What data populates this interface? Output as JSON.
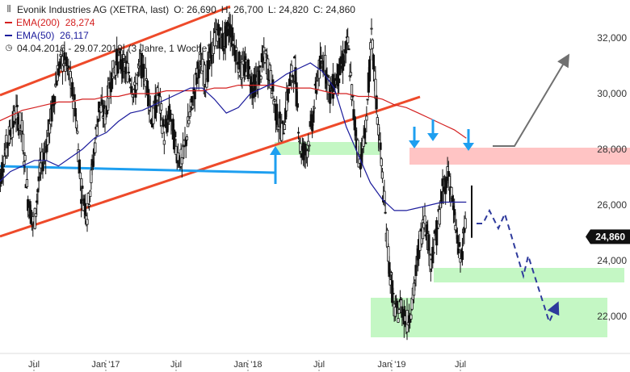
{
  "chart_data": {
    "type": "candlestick",
    "title": "Evonik Industries AG (XETRA, last)",
    "ohlc": {
      "o_label": "O:",
      "open": "26,690",
      "h_label": "H:",
      "high": "26,700",
      "l_label": "L:",
      "low": "24,820",
      "c_label": "C:",
      "close": "24,860"
    },
    "indicators": [
      {
        "name": "EMA(200)",
        "value": "28,274",
        "color": "#d42020"
      },
      {
        "name": "EMA(50)",
        "value": "26,117",
        "color": "#1c1c9c"
      }
    ],
    "period": "04.04.2016 - 29.07.2019",
    "period_note": "(3 Jahre, 1 Woche)",
    "last_price_label": "24,860",
    "last_price": 24.86,
    "ylim": [
      20.8,
      33.5
    ],
    "yticks": [
      22,
      24,
      26,
      28,
      30,
      32
    ],
    "ytick_labels": [
      "22,000",
      "24,000",
      "26,000",
      "28,000",
      "30,000",
      "32,000"
    ],
    "xlim": [
      0,
      40
    ],
    "xticks": [
      {
        "label": "Jul",
        "x": 3
      },
      {
        "label": "Jan '17",
        "x": 9
      },
      {
        "label": "Jul",
        "x": 15
      },
      {
        "label": "Jan '18",
        "x": 21
      },
      {
        "label": "Jul",
        "x": 27
      },
      {
        "label": "Jan '19",
        "x": 33
      },
      {
        "label": "Jul",
        "x": 39
      }
    ],
    "price_series": {
      "x": [
        0,
        0.5,
        1,
        1.5,
        2,
        2.5,
        3,
        3.5,
        4,
        4.5,
        5,
        5.5,
        6,
        6.5,
        7,
        7.5,
        8,
        8.5,
        9,
        9.5,
        10,
        10.5,
        11,
        11.5,
        12,
        12.5,
        13,
        13.5,
        14,
        14.5,
        15,
        15.5,
        16,
        16.5,
        17,
        17.5,
        18,
        18.5,
        19,
        19.5,
        20,
        20.5,
        21,
        21.5,
        22,
        22.5,
        23,
        23.5,
        24,
        24.5,
        25,
        25.5,
        26,
        26.5,
        27,
        27.5,
        28,
        28.5,
        29,
        29.5,
        30,
        30.5,
        31,
        31.5,
        32,
        32.5,
        33,
        33.5,
        34,
        34.5,
        35,
        35.5,
        36,
        36.5,
        37,
        37.5,
        38,
        38.5,
        39,
        39.5
      ],
      "close": [
        26.5,
        27.8,
        28.6,
        29.3,
        28.7,
        26.2,
        25.2,
        27.2,
        28.0,
        29.3,
        30.8,
        31.2,
        30.6,
        29.5,
        26.5,
        25.7,
        27.6,
        29.5,
        29.2,
        30.5,
        31.2,
        31.0,
        30.8,
        30.0,
        31.1,
        30.5,
        29.0,
        30.0,
        28.5,
        29.3,
        28.0,
        27.5,
        28.8,
        30.0,
        31.2,
        30.5,
        31.5,
        32.2,
        31.8,
        32.4,
        31.6,
        30.8,
        31.0,
        30.2,
        30.6,
        31.4,
        30.5,
        29.2,
        28.6,
        30.2,
        31.0,
        28.0,
        27.9,
        29.0,
        30.8,
        31.2,
        30.0,
        30.5,
        31.0,
        31.8,
        29.2,
        27.5,
        28.6,
        32.0,
        29.2,
        26.5,
        23.8,
        22.0,
        22.4,
        21.8,
        22.6,
        24.5,
        25.6,
        24.0,
        25.0,
        26.5,
        27.2,
        25.5,
        24.0,
        25.4
      ]
    },
    "ema200": [
      29.0,
      29.2,
      29.4,
      29.5,
      29.6,
      29.7,
      29.7,
      29.8,
      29.8,
      29.9,
      29.9,
      30.0,
      30.0,
      30.0,
      30.1,
      30.1,
      30.1,
      30.1,
      30.2,
      30.2,
      30.3,
      30.3,
      30.3,
      30.3,
      30.2,
      30.2,
      30.2,
      30.1,
      30.0,
      30.0,
      29.9,
      29.9,
      29.8,
      29.6,
      29.5,
      29.3,
      29.1,
      28.9,
      28.7,
      28.4
    ],
    "ema50": [
      26.8,
      27.2,
      27.4,
      27.6,
      27.6,
      27.4,
      27.7,
      28.0,
      28.4,
      28.6,
      29.0,
      29.3,
      29.4,
      29.6,
      29.8,
      30.0,
      30.2,
      30.2,
      29.8,
      29.3,
      29.5,
      30.0,
      30.2,
      30.4,
      30.7,
      30.9,
      31.1,
      30.8,
      30.2,
      28.8,
      27.8,
      26.8,
      26.2,
      25.8,
      25.8,
      25.9,
      26.0,
      26.1,
      26.1,
      26.1
    ]
  }
}
